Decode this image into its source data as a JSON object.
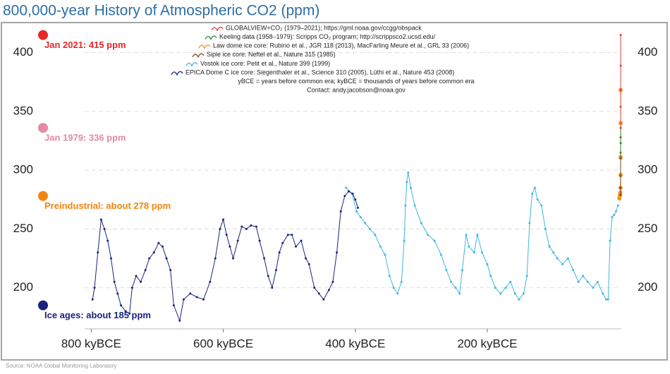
{
  "chart_data": {
    "type": "line",
    "title": "800,000-year History of Atmospheric CO2 (ppm)",
    "source": "Source: NOAA Global Monitoring Laboratory",
    "xlim": [
      810,
      -3
    ],
    "xticks": [
      {
        "value": 800,
        "label": "800 kyBCE"
      },
      {
        "value": 600,
        "label": "600 kyBCE"
      },
      {
        "value": 400,
        "label": "400 kyBCE"
      },
      {
        "value": 200,
        "label": "200 kyBCE"
      }
    ],
    "ylim": [
      165,
      425
    ],
    "yticks": [
      200,
      250,
      300,
      350,
      400
    ],
    "grid": true,
    "series": [
      {
        "name": "GLOBALVIEW+CO₂ (1979–2021); https://gml.noaa.gov/ccgg/obspack",
        "color": "#e0403a",
        "x": [
          -1.979,
          -1.99,
          -2.0,
          -2.01,
          -2.021
        ],
        "values": [
          336,
          354,
          369,
          389,
          415
        ]
      },
      {
        "name": "Keeling data (1958–1979): Scripps CO₂ program; http://scrippsco2.ucsd.edu/",
        "color": "#2e8b2e",
        "x": [
          -1.958,
          -1.968,
          -1.979
        ],
        "values": [
          315,
          323,
          336
        ]
      },
      {
        "name": "Law dome ice core:  Rubino et al., JGR 118 (2013), MacFarling Meure et al., GRL 33 (2006)",
        "color": "#f7941d",
        "x": [
          0,
          -0.5,
          -1.0,
          -1.5,
          -1.8,
          -1.9,
          -1.95,
          -1.98,
          -2.0
        ],
        "values": [
          276,
          278,
          279,
          281,
          285,
          296,
          311,
          340,
          368
        ]
      },
      {
        "name": "Siple ice core:  Neftel et al., Nature 315 (1985)",
        "color": "#7a4a1a",
        "x": [
          -1.744,
          -1.8,
          -1.87,
          -1.92,
          -1.953
        ],
        "values": [
          279,
          285,
          295,
          310,
          328
        ]
      },
      {
        "name": "Vostok ice core:  Petit et al., Nature 399 (1999)",
        "color": "#3fb6e4",
        "x": [
          414,
          405,
          398,
          392,
          385,
          378,
          370,
          362,
          355,
          348,
          342,
          336,
          330,
          326,
          324,
          322,
          320,
          316,
          310,
          300,
          290,
          280,
          270,
          262,
          255,
          248,
          242,
          238,
          232,
          228,
          220,
          215,
          208,
          200,
          195,
          188,
          180,
          172,
          165,
          158,
          152,
          145,
          140,
          136,
          132,
          128,
          124,
          118,
          112,
          106,
          100,
          94,
          86,
          78,
          70,
          62,
          55,
          48,
          40,
          33,
          25,
          20,
          17,
          14,
          11,
          8,
          5,
          2
        ],
        "values": [
          285,
          280,
          265,
          260,
          255,
          250,
          245,
          235,
          228,
          210,
          200,
          195,
          205,
          240,
          270,
          290,
          298,
          285,
          270,
          255,
          245,
          240,
          228,
          215,
          205,
          200,
          195,
          215,
          245,
          235,
          230,
          245,
          230,
          220,
          210,
          200,
          195,
          200,
          205,
          195,
          190,
          195,
          210,
          255,
          280,
          285,
          275,
          270,
          250,
          235,
          230,
          225,
          220,
          225,
          215,
          205,
          210,
          205,
          200,
          205,
          195,
          190,
          190,
          240,
          260,
          262,
          265,
          270
        ]
      },
      {
        "name": "EPICA Dome C ice core:  Siegenthaler et al., Science 310 (2005), Lüthi et al., Nature 453 (2008)",
        "color": "#1a237e",
        "x": [
          798,
          795,
          790,
          785,
          780,
          775,
          770,
          765,
          760,
          755,
          748,
          742,
          738,
          732,
          725,
          718,
          712,
          705,
          698,
          692,
          686,
          680,
          675,
          666,
          660,
          650,
          640,
          630,
          620,
          612,
          605,
          600,
          595,
          590,
          585,
          578,
          572,
          565,
          558,
          550,
          545,
          538,
          532,
          526,
          520,
          515,
          510,
          502,
          496,
          490,
          482,
          475,
          470,
          462,
          455,
          448,
          440,
          434,
          428,
          422,
          416,
          410,
          404,
          400,
          396
        ],
        "values": [
          190,
          200,
          230,
          258,
          250,
          240,
          225,
          205,
          195,
          185,
          180,
          178,
          200,
          210,
          205,
          215,
          225,
          230,
          238,
          235,
          225,
          215,
          185,
          172,
          190,
          195,
          192,
          190,
          205,
          225,
          250,
          258,
          245,
          235,
          225,
          240,
          252,
          250,
          253,
          252,
          240,
          225,
          210,
          200,
          215,
          230,
          238,
          245,
          245,
          235,
          240,
          225,
          220,
          200,
          195,
          190,
          198,
          205,
          230,
          265,
          278,
          282,
          280,
          275,
          268
        ]
      }
    ],
    "notes": [
      "yBCE = years before common era; kyBCE = thousands of years before common era",
      "Contact: andy.jacobson@noaa.gov"
    ],
    "annotations": [
      {
        "text": "Jan 2021: 415 ppm",
        "value": 415,
        "color": "#e8262a"
      },
      {
        "text": "Jan 1979: 336 ppm",
        "value": 336,
        "color": "#e38aa0"
      },
      {
        "text": "Preindustrial: about 278 ppm",
        "value": 278,
        "color": "#f0860f"
      },
      {
        "text": "Ice ages: about 185 ppm",
        "value": 185,
        "color": "#1a237e"
      }
    ]
  }
}
